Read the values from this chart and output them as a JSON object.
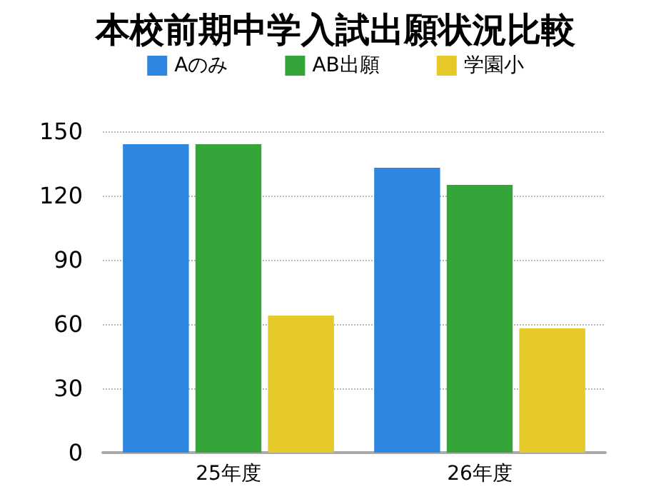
{
  "chart_data": {
    "type": "bar",
    "title": "本校前期中学入試出願状況比較",
    "categories": [
      "25年度",
      "26年度"
    ],
    "series": [
      {
        "name": "Aのみ",
        "color": "#2f86e0",
        "values": [
          144,
          133
        ]
      },
      {
        "name": "AB出願",
        "color": "#35a53a",
        "values": [
          144,
          125
        ]
      },
      {
        "name": "学園小",
        "color": "#e5c82a",
        "values": [
          64,
          58
        ]
      }
    ],
    "ylim": [
      0,
      150
    ],
    "yticks": [
      0,
      30,
      60,
      90,
      120,
      150
    ],
    "grid": "y",
    "legend": "top"
  }
}
